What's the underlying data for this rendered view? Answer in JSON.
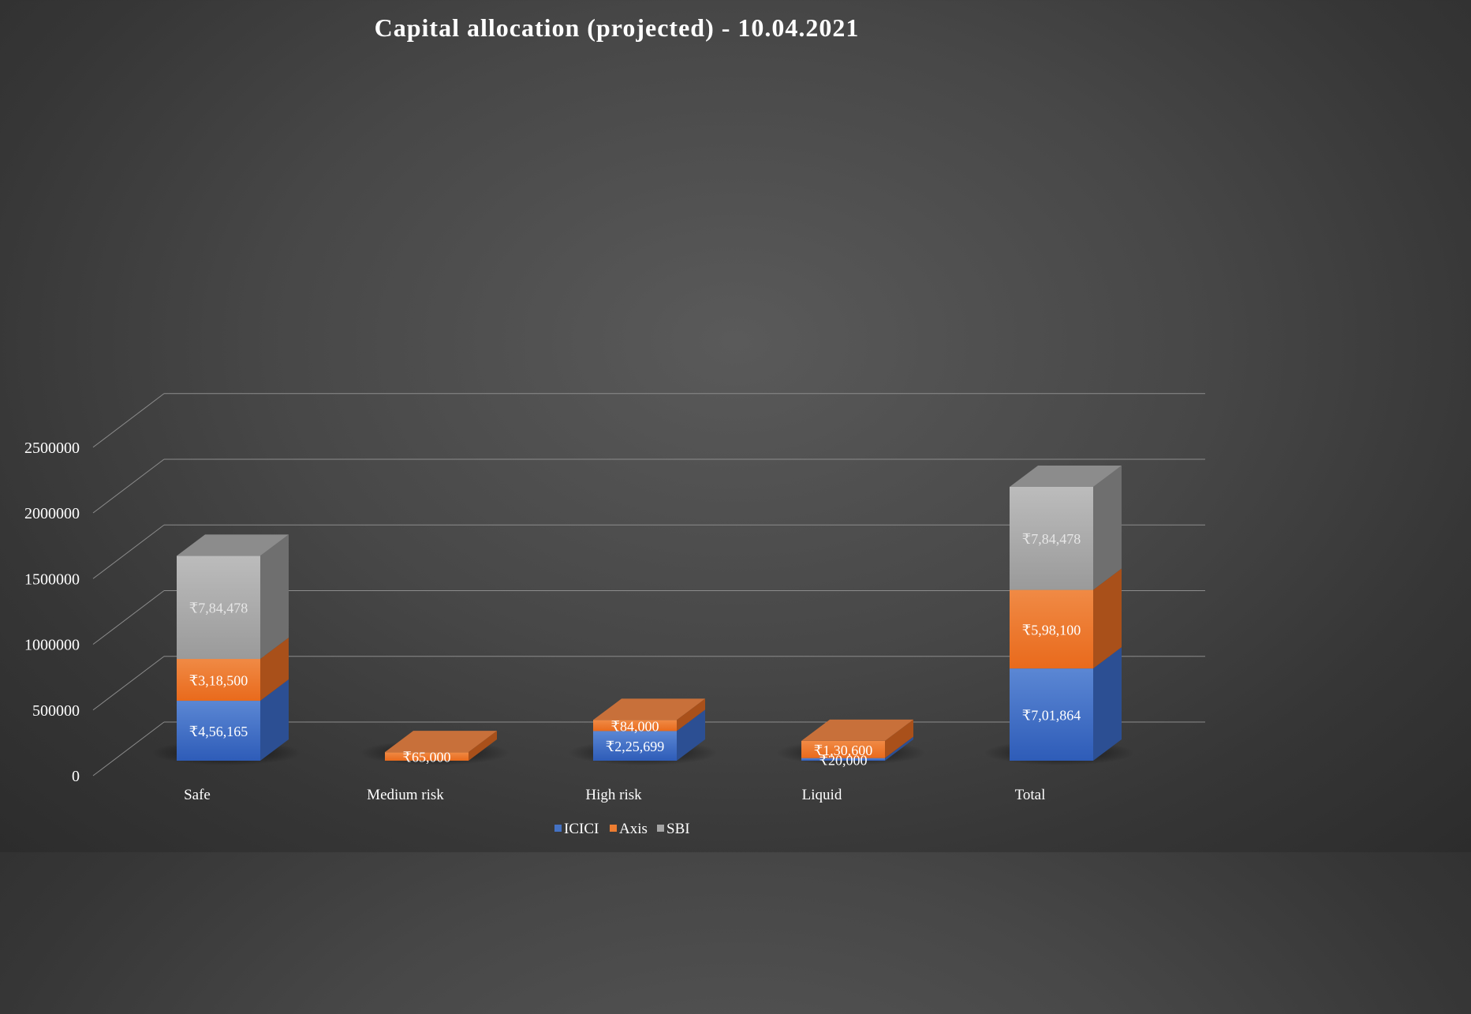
{
  "chart_data": {
    "type": "bar",
    "stacked": true,
    "style": "3d",
    "title": "Capital allocation (projected) - 10.04.2021",
    "xlabel": "",
    "ylabel": "",
    "categories": [
      "Safe",
      "Medium risk",
      "High risk",
      "Liquid",
      "Total"
    ],
    "series": [
      {
        "name": "ICICI",
        "color": "#4472c4",
        "values": [
          456165,
          0,
          225699,
          20000,
          701864
        ],
        "labels": [
          "₹4,56,165",
          "",
          "₹2,25,699",
          "₹20,000",
          "₹7,01,864"
        ]
      },
      {
        "name": "Axis",
        "color": "#ed7d31",
        "values": [
          318500,
          65000,
          84000,
          130600,
          598100
        ],
        "labels": [
          "₹3,18,500",
          "₹65,000",
          "₹84,000",
          "₹1,30,600",
          "₹5,98,100"
        ]
      },
      {
        "name": "SBI",
        "color": "#a5a5a5",
        "values": [
          784478,
          0,
          0,
          0,
          784478
        ],
        "labels": [
          "₹7,84,478",
          "",
          "",
          "",
          "₹7,84,478"
        ]
      }
    ],
    "yticks": [
      "0",
      "500000",
      "1000000",
      "1500000",
      "2000000",
      "2500000"
    ],
    "ylim": [
      0,
      2500000
    ],
    "grid": true,
    "legend_position": "bottom"
  }
}
